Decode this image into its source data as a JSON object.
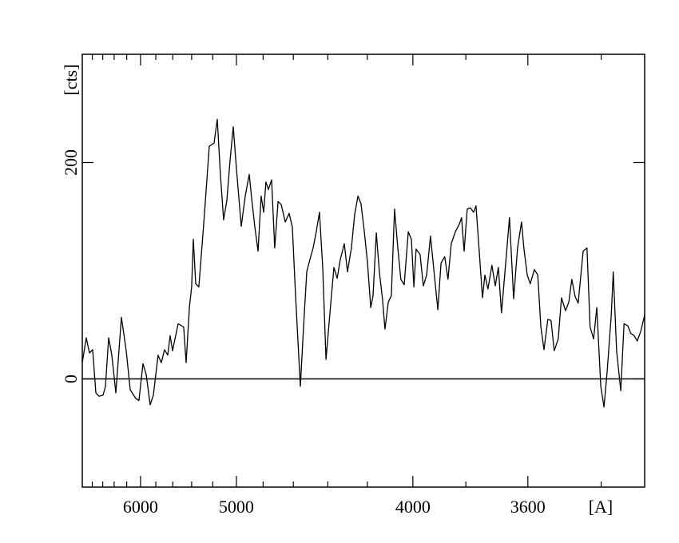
{
  "chart_data": {
    "type": "line",
    "xlabel": "[A]",
    "ylabel": "[cts]",
    "xscale": "inverse-square",
    "xlim": [
      7010,
      3296
    ],
    "ylim": [
      -100,
      300
    ],
    "xticks": [
      6000,
      5000,
      4000,
      3600
    ],
    "yticks": [
      0,
      200
    ],
    "xminorticks": [
      6800,
      6600,
      6400,
      6200,
      5800,
      5600,
      5400,
      5200,
      4800,
      4600,
      4400,
      4200,
      3800,
      3400
    ],
    "zero_line": true,
    "x": [
      7010,
      6924,
      6857,
      6793,
      6730,
      6668,
      6594,
      6551,
      6494,
      6439,
      6372,
      6321,
      6282,
      6208,
      6148,
      6067,
      6022,
      5967,
      5924,
      5871,
      5831,
      5772,
      5733,
      5694,
      5657,
      5630,
      5603,
      5541,
      5482,
      5456,
      5423,
      5400,
      5383,
      5360,
      5329,
      5283,
      5231,
      5188,
      5160,
      5132,
      5105,
      5078,
      5051,
      5025,
      5000,
      4962,
      4931,
      4901,
      4883,
      4859,
      4836,
      4814,
      4796,
      4780,
      4763,
      4741,
      4720,
      4698,
      4677,
      4651,
      4626,
      4606,
      4586,
      4557,
      4538,
      4519,
      4501,
      4482,
      4464,
      4446,
      4428,
      4410,
      4384,
      4367,
      4350,
      4334,
      4313,
      4297,
      4277,
      4261,
      4245,
      4230,
      4214,
      4199,
      4184,
      4173,
      4158,
      4144,
      4130,
      4119,
      4104,
      4091,
      4077,
      4063,
      4050,
      4036,
      4019,
      4006,
      3996,
      3987,
      3971,
      3958,
      3945,
      3930,
      3918,
      3902,
      3890,
      3876,
      3864,
      3852,
      3837,
      3823,
      3815,
      3806,
      3795,
      3784,
      3773,
      3765,
      3754,
      3743,
      3735,
      3725,
      3712,
      3701,
      3691,
      3681,
      3671,
      3656,
      3643,
      3631,
      3619,
      3612,
      3602,
      3593,
      3581,
      3571,
      3562,
      3553,
      3542,
      3533,
      3524,
      3513,
      3504,
      3493,
      3484,
      3476,
      3467,
      3459,
      3446,
      3436,
      3428,
      3419,
      3411,
      3401,
      3393,
      3385,
      3375,
      3370,
      3362,
      3352,
      3344,
      3335,
      3328,
      3320,
      3313,
      3305,
      3296
    ],
    "series": [
      {
        "color": "#000000",
        "values": [
          15,
          38,
          24,
          27,
          -13,
          -16,
          -15,
          -7,
          38,
          22,
          -13,
          26,
          57,
          26,
          -10,
          -18,
          -20,
          14,
          4,
          -24,
          -15,
          22,
          15,
          27,
          22,
          40,
          26,
          51,
          48,
          15,
          66,
          85,
          129,
          88,
          85,
          143,
          215,
          218,
          240,
          188,
          147,
          165,
          202,
          233,
          195,
          141,
          169,
          189,
          167,
          140,
          118,
          169,
          154,
          182,
          175,
          184,
          121,
          164,
          161,
          145,
          153,
          140,
          77,
          -7,
          48,
          99,
          110,
          121,
          136,
          154,
          103,
          18,
          70,
          103,
          93,
          110,
          125,
          99,
          121,
          152,
          169,
          162,
          136,
          107,
          66,
          77,
          135,
          99,
          74,
          46,
          71,
          77,
          157,
          121,
          92,
          87,
          136,
          129,
          85,
          120,
          115,
          86,
          96,
          132,
          103,
          64,
          107,
          113,
          92,
          125,
          136,
          143,
          149,
          118,
          157,
          158,
          154,
          160,
          118,
          75,
          96,
          83,
          105,
          86,
          103,
          61,
          96,
          149,
          74,
          121,
          145,
          121,
          96,
          88,
          101,
          96,
          48,
          27,
          55,
          54,
          26,
          37,
          75,
          63,
          71,
          92,
          76,
          70,
          118,
          121,
          48,
          37,
          66,
          -7,
          -26,
          7,
          59,
          99,
          26,
          -11,
          51,
          49,
          42,
          40,
          35,
          44,
          59
        ]
      }
    ]
  }
}
